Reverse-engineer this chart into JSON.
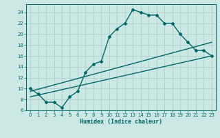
{
  "title": "",
  "xlabel": "Humidex (Indice chaleur)",
  "background_color": "#cce8e4",
  "grid_color": "#aaccc8",
  "line_color": "#006666",
  "xlim": [
    -0.5,
    23.5
  ],
  "ylim": [
    6,
    25.5
  ],
  "yticks": [
    6,
    8,
    10,
    12,
    14,
    16,
    18,
    20,
    22,
    24
  ],
  "xticks": [
    0,
    1,
    2,
    3,
    4,
    5,
    6,
    7,
    8,
    9,
    10,
    11,
    12,
    13,
    14,
    15,
    16,
    17,
    18,
    19,
    20,
    21,
    22,
    23
  ],
  "line1_x": [
    0,
    1,
    2,
    3,
    4,
    5,
    6,
    7,
    8,
    9,
    10,
    11,
    12,
    13,
    14,
    15,
    16,
    17,
    18,
    19,
    20,
    21,
    22,
    23
  ],
  "line1_y": [
    10,
    9,
    7.5,
    7.5,
    6.5,
    8.5,
    9.5,
    13,
    14.5,
    15,
    19.5,
    21,
    22,
    24.5,
    24,
    23.5,
    23.5,
    22,
    22,
    20,
    18.5,
    17,
    17,
    16
  ],
  "line2_x": [
    0,
    23
  ],
  "line2_y": [
    8.5,
    16
  ],
  "line3_x": [
    0,
    23
  ],
  "line3_y": [
    9.5,
    18.5
  ],
  "marker": "D",
  "markersize": 2.0,
  "linewidth": 1.0,
  "xlabel_fontsize": 6.0,
  "tick_labelsize": 5.0
}
